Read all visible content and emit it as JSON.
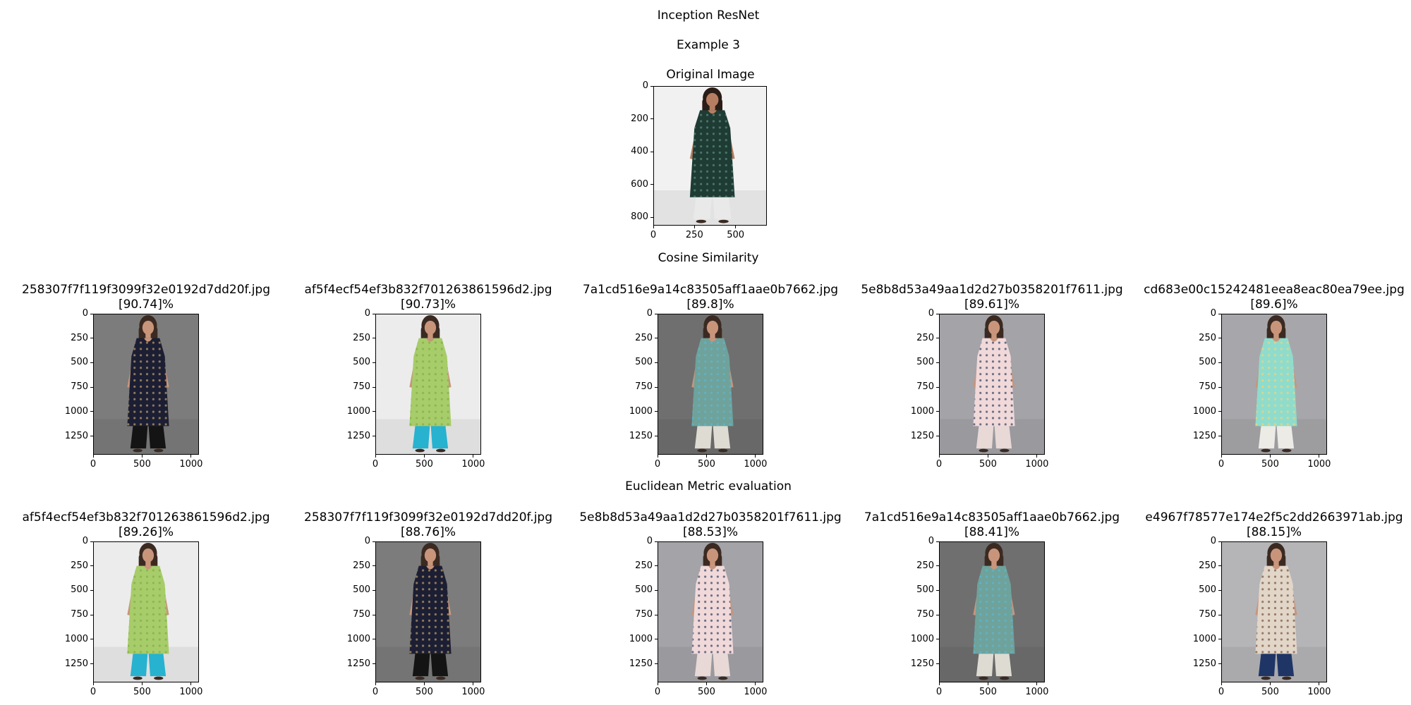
{
  "figure": {
    "title": "Inception ResNet",
    "subtitle": "Example 3",
    "original_title": "Original Image",
    "cosine_heading": "Cosine Similarity",
    "euclidean_heading": "Euclidean Metric evaluation"
  },
  "chart_data": [
    {
      "type": "image",
      "title": "Original Image",
      "subject": "dark green printed knee-length kurta",
      "xticks": [
        "0",
        "250",
        "500"
      ],
      "yticks": [
        "0",
        "200",
        "400",
        "600",
        "800"
      ],
      "xlim": [
        0,
        690
      ],
      "ylim": [
        850,
        0
      ],
      "colors": {
        "bg": "#f1f1f1",
        "garment": "#1e3b34",
        "pattern": "#5b8a7a",
        "skin": "#b57e62",
        "hair": "#2a1c17",
        "bottom": "#e9e9e9"
      }
    },
    {
      "type": "image",
      "group": "Cosine Similarity",
      "filename": "258307f7f119f3099f32e0192d7dd20f.jpg",
      "score": "[90.74]%",
      "subject": "black floral kurta with black palazzo",
      "xticks": [
        "0",
        "500",
        "1000"
      ],
      "yticks": [
        "0",
        "250",
        "500",
        "750",
        "1000",
        "1250"
      ],
      "xlim": [
        0,
        1080
      ],
      "ylim": [
        1440,
        0
      ],
      "colors": {
        "bg": "#7c7c7c",
        "garment": "#1c1e33",
        "pattern": "#b59a6a",
        "skin": "#c8957b",
        "hair": "#3b2a22",
        "bottom": "#141414"
      }
    },
    {
      "type": "image",
      "group": "Cosine Similarity",
      "filename": "af5f4ecf54ef3b832f701263861596d2.jpg",
      "score": "[90.73]%",
      "subject": "lime green sleeveless kurta with blue palazzo",
      "xticks": [
        "0",
        "500",
        "1000"
      ],
      "yticks": [
        "0",
        "250",
        "500",
        "750",
        "1000",
        "1250"
      ],
      "xlim": [
        0,
        1080
      ],
      "ylim": [
        1440,
        0
      ],
      "colors": {
        "bg": "#ececec",
        "garment": "#a7cc6a",
        "pattern": "#86ad49",
        "skin": "#c8957b",
        "hair": "#3b2a22",
        "bottom": "#27b2d0"
      }
    },
    {
      "type": "image",
      "group": "Cosine Similarity",
      "filename": "7a1cd516e9a14c83505aff1aae0b7662.jpg",
      "score": "[89.8]%",
      "subject": "teal printed kurta with white trousers",
      "xticks": [
        "0",
        "500",
        "1000"
      ],
      "yticks": [
        "0",
        "250",
        "500",
        "750",
        "1000",
        "1250"
      ],
      "xlim": [
        0,
        1080
      ],
      "ylim": [
        1440,
        0
      ],
      "colors": {
        "bg": "#6f6f6f",
        "garment": "#6fa29b",
        "pattern": "#59b8d4",
        "skin": "#c8957b",
        "hair": "#3b2a22",
        "bottom": "#dddbd2"
      }
    },
    {
      "type": "image",
      "group": "Cosine Similarity",
      "filename": "5e8b8d53a49aa1d2d27b0358201f7611.jpg",
      "score": "[89.61]%",
      "subject": "pink and navy colour-block kurta",
      "xticks": [
        "0",
        "500",
        "1000"
      ],
      "yticks": [
        "0",
        "250",
        "500",
        "750",
        "1000",
        "1250"
      ],
      "xlim": [
        0,
        1080
      ],
      "ylim": [
        1440,
        0
      ],
      "colors": {
        "bg": "#a3a3a8",
        "garment": "#f1d9da",
        "pattern": "#3e4a66",
        "skin": "#c8957b",
        "hair": "#3b2a22",
        "bottom": "#e8d8d6"
      }
    },
    {
      "type": "image",
      "group": "Cosine Similarity",
      "filename": "cd683e00c15242481eea8eac80ea79ee.jpg",
      "score": "[89.6]%",
      "subject": "aqua and yellow kurta with white trousers",
      "xticks": [
        "0",
        "500",
        "1000"
      ],
      "yticks": [
        "0",
        "250",
        "500",
        "750",
        "1000",
        "1250"
      ],
      "xlim": [
        0,
        1080
      ],
      "ylim": [
        1440,
        0
      ],
      "colors": {
        "bg": "#a7a7ab",
        "garment": "#8fdccc",
        "pattern": "#f2d37a",
        "skin": "#c8957b",
        "hair": "#3b2a22",
        "bottom": "#ecebe6"
      }
    },
    {
      "type": "image",
      "group": "Euclidean Metric evaluation",
      "filename": "af5f4ecf54ef3b832f701263861596d2.jpg",
      "score": "[89.26]%",
      "subject": "lime green sleeveless kurta with blue palazzo",
      "xticks": [
        "0",
        "500",
        "1000"
      ],
      "yticks": [
        "0",
        "250",
        "500",
        "750",
        "1000",
        "1250"
      ],
      "xlim": [
        0,
        1080
      ],
      "ylim": [
        1440,
        0
      ],
      "colors": {
        "bg": "#ececec",
        "garment": "#a7cc6a",
        "pattern": "#86ad49",
        "skin": "#c8957b",
        "hair": "#3b2a22",
        "bottom": "#27b2d0"
      }
    },
    {
      "type": "image",
      "group": "Euclidean Metric evaluation",
      "filename": "258307f7f119f3099f32e0192d7dd20f.jpg",
      "score": "[88.76]%",
      "subject": "black floral kurta with black palazzo",
      "xticks": [
        "0",
        "500",
        "1000"
      ],
      "yticks": [
        "0",
        "250",
        "500",
        "750",
        "1000",
        "1250"
      ],
      "xlim": [
        0,
        1080
      ],
      "ylim": [
        1440,
        0
      ],
      "colors": {
        "bg": "#7c7c7c",
        "garment": "#1c1e33",
        "pattern": "#b59a6a",
        "skin": "#c8957b",
        "hair": "#3b2a22",
        "bottom": "#141414"
      }
    },
    {
      "type": "image",
      "group": "Euclidean Metric evaluation",
      "filename": "5e8b8d53a49aa1d2d27b0358201f7611.jpg",
      "score": "[88.53]%",
      "subject": "pink and navy colour-block kurta",
      "xticks": [
        "0",
        "500",
        "1000"
      ],
      "yticks": [
        "0",
        "250",
        "500",
        "750",
        "1000",
        "1250"
      ],
      "xlim": [
        0,
        1080
      ],
      "ylim": [
        1440,
        0
      ],
      "colors": {
        "bg": "#a3a3a8",
        "garment": "#f1d9da",
        "pattern": "#3e4a66",
        "skin": "#c8957b",
        "hair": "#3b2a22",
        "bottom": "#e8d8d6"
      }
    },
    {
      "type": "image",
      "group": "Euclidean Metric evaluation",
      "filename": "7a1cd516e9a14c83505aff1aae0b7662.jpg",
      "score": "[88.41]%",
      "subject": "teal printed kurta with white trousers",
      "xticks": [
        "0",
        "500",
        "1000"
      ],
      "yticks": [
        "0",
        "250",
        "500",
        "750",
        "1000",
        "1250"
      ],
      "xlim": [
        0,
        1080
      ],
      "ylim": [
        1440,
        0
      ],
      "colors": {
        "bg": "#6f6f6f",
        "garment": "#6fa29b",
        "pattern": "#59b8d4",
        "skin": "#c8957b",
        "hair": "#3b2a22",
        "bottom": "#dddbd2"
      }
    },
    {
      "type": "image",
      "group": "Euclidean Metric evaluation",
      "filename": "e4967f78577e174e2f5c2dd2663971ab.jpg",
      "score": "[88.15]%",
      "subject": "brown and white printed kurta with navy trousers",
      "xticks": [
        "0",
        "500",
        "1000"
      ],
      "yticks": [
        "0",
        "250",
        "500",
        "750",
        "1000",
        "1250"
      ],
      "xlim": [
        0,
        1080
      ],
      "ylim": [
        1440,
        0
      ],
      "colors": {
        "bg": "#b5b5b8",
        "garment": "#e2d6c9",
        "pattern": "#7a5a45",
        "skin": "#c8957b",
        "hair": "#3b2a22",
        "bottom": "#1f3566"
      }
    }
  ]
}
